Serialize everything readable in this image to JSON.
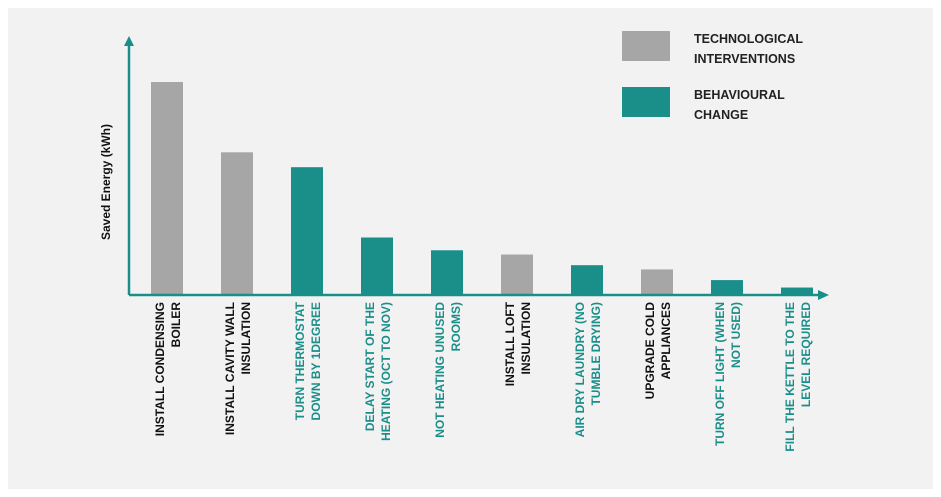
{
  "chart_data": {
    "type": "bar",
    "title": "",
    "xlabel": "",
    "ylabel": "Saved Energy (kWh)",
    "ylim": [
      0,
      100
    ],
    "grid": false,
    "legend_position": "top-right",
    "categories": [
      {
        "lines": [
          "INSTALL CONDENSING",
          "BOILER"
        ],
        "value": 100,
        "group": "technological"
      },
      {
        "lines": [
          "INSTALL CAVITY WALL",
          "INSULATION"
        ],
        "value": 67,
        "group": "technological"
      },
      {
        "lines": [
          "TURN THERMOSTAT",
          "DOWN BY 1DEGREE"
        ],
        "value": 60,
        "group": "behavioural"
      },
      {
        "lines": [
          "DELAY START OF THE",
          "HEATING (OCT TO NOV)"
        ],
        "value": 27,
        "group": "behavioural"
      },
      {
        "lines": [
          "NOT HEATING UNUSED",
          "ROOMS)"
        ],
        "value": 21,
        "group": "behavioural"
      },
      {
        "lines": [
          "INSTALL LOFT",
          "INSULATION"
        ],
        "value": 19,
        "group": "technological"
      },
      {
        "lines": [
          "AIR DRY LAUNDRY  (NO",
          "TUMBLE DRYING)"
        ],
        "value": 14,
        "group": "behavioural"
      },
      {
        "lines": [
          "UPGRADE COLD",
          "APPLIANCES"
        ],
        "value": 12,
        "group": "technological"
      },
      {
        "lines": [
          "TURN OFF LIGHT (WHEN",
          "NOT USED)"
        ],
        "value": 7,
        "group": "behavioural"
      },
      {
        "lines": [
          "FILL THE KETTLE TO THE",
          "LEVEL REQUIRED"
        ],
        "value": 3.5,
        "group": "behavioural"
      }
    ],
    "groups": {
      "technological": {
        "bar_color": "#a6a6a6",
        "label_color": "#111111"
      },
      "behavioural": {
        "bar_color": "#1a8f8a",
        "label_color": "#1a8f8a"
      }
    },
    "axis_color": "#1a8f8a"
  },
  "legend": [
    {
      "group": "technological",
      "lines": [
        "TECHNOLOGICAL",
        "INTERVENTIONS"
      ],
      "color": "#a6a6a6"
    },
    {
      "group": "behavioural",
      "lines": [
        "BEHAVIOURAL",
        "CHANGE"
      ],
      "color": "#1a8f8a"
    }
  ]
}
